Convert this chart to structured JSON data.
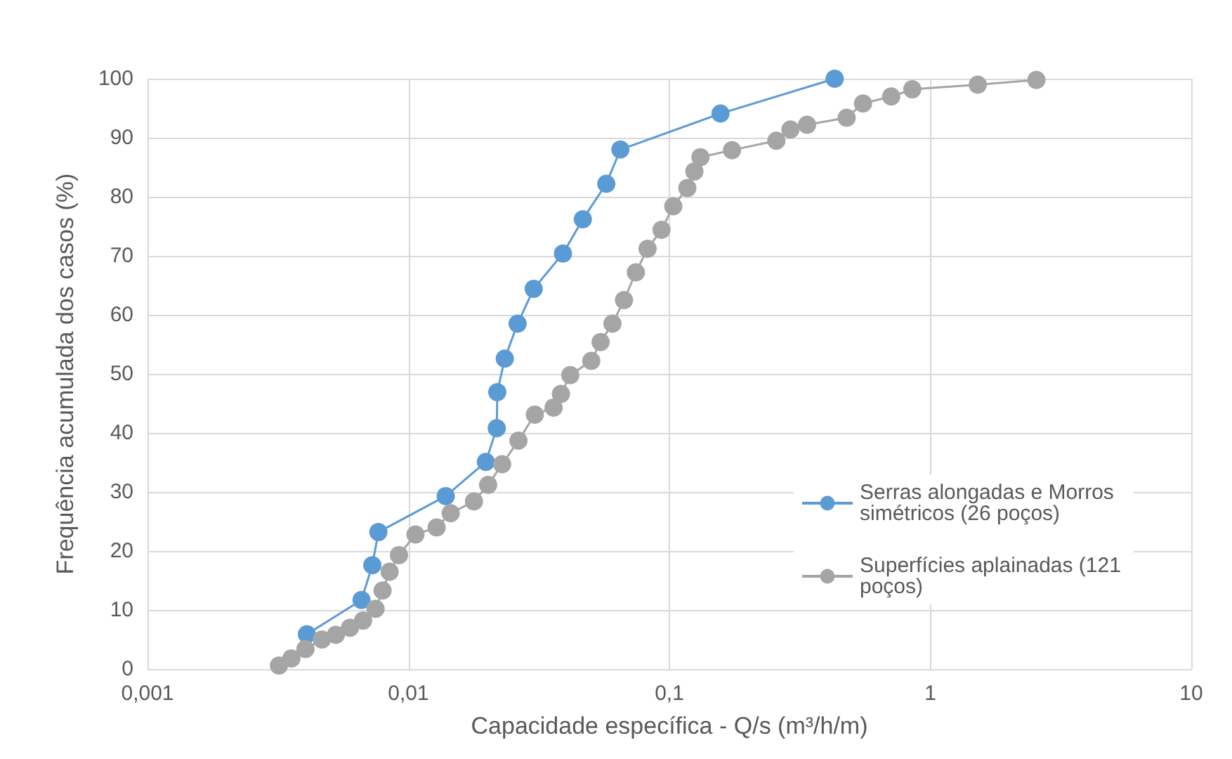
{
  "chart_data": {
    "type": "line",
    "xlabel": "Capacidade específica - Q/s (m³/h/m)",
    "ylabel": "Frequência acumulada dos casos (%)",
    "log": "x",
    "xlim": [
      0.001,
      10
    ],
    "xticks": [
      {
        "value": 0.001,
        "label": "0,001"
      },
      {
        "value": 0.01,
        "label": "0,01"
      },
      {
        "value": 0.1,
        "label": "0,1"
      },
      {
        "value": 1,
        "label": "1"
      },
      {
        "value": 10,
        "label": "10"
      }
    ],
    "ylim": [
      0,
      100
    ],
    "yticks": [
      0,
      10,
      20,
      30,
      40,
      50,
      60,
      70,
      80,
      90,
      100
    ],
    "grid": true,
    "legend": "right",
    "marker": "circle",
    "line_style": "solid",
    "series": [
      {
        "name": "Serras alongadas e Morros simétricos (26 poços)",
        "color": "#5b9bd5",
        "x": [
          0.00408,
          0.00661,
          0.00727,
          0.00767,
          0.0139,
          0.0198,
          0.0218,
          0.0219,
          0.0234,
          0.0262,
          0.0302,
          0.0391,
          0.0466,
          0.0573,
          0.0649,
          0.157,
          0.43
        ],
        "values": [
          5.9,
          11.7,
          17.6,
          23.2,
          29.3,
          35.1,
          40.8,
          46.9,
          52.6,
          58.5,
          64.4,
          70.4,
          76.2,
          82.2,
          88.0,
          94.1,
          100
        ]
      },
      {
        "name": "Superfícies aplainadas (121 poços)",
        "color": "#a5a5a5",
        "x": [
          0.00319,
          0.00356,
          0.00403,
          0.00466,
          0.00527,
          0.00597,
          0.0067,
          0.00748,
          0.00796,
          0.00847,
          0.0092,
          0.01064,
          0.01282,
          0.01452,
          0.01783,
          0.0202,
          0.02286,
          0.0264,
          0.0305,
          0.036,
          0.0384,
          0.0417,
          0.0502,
          0.0545,
          0.0605,
          0.067,
          0.0744,
          0.0825,
          0.0933,
          0.1035,
          0.1172,
          0.1247,
          0.1315,
          0.1738,
          0.257,
          0.291,
          0.337,
          0.478,
          0.552,
          0.708,
          0.853,
          1.52,
          2.55
        ],
        "values": [
          0.6,
          1.8,
          3.4,
          5.0,
          5.8,
          7.0,
          8.2,
          10.2,
          13.3,
          16.5,
          19.3,
          22.8,
          24.0,
          26.4,
          28.4,
          31.2,
          34.7,
          38.7,
          43.1,
          44.3,
          46.6,
          49.8,
          52.2,
          55.4,
          58.5,
          62.5,
          67.2,
          71.2,
          74.4,
          78.4,
          81.5,
          84.3,
          86.7,
          87.9,
          89.5,
          91.4,
          92.2,
          93.4,
          95.8,
          97.0,
          98.2,
          99.0,
          99.8
        ]
      }
    ]
  }
}
